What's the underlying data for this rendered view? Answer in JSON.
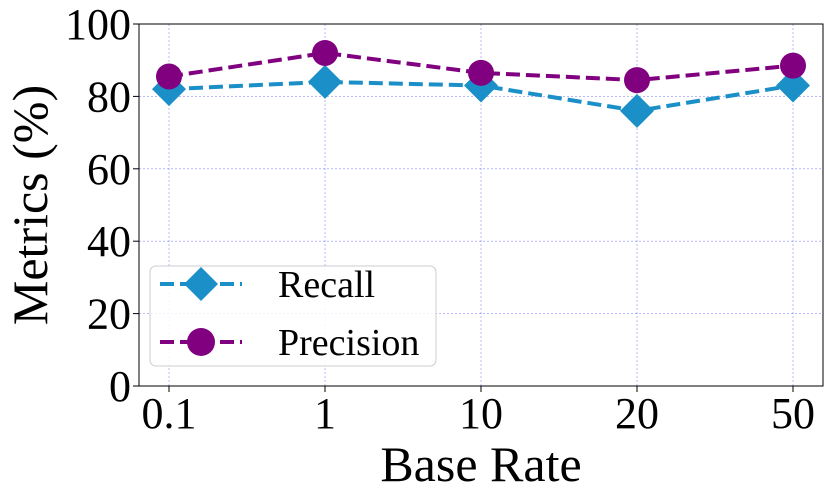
{
  "chart_data": {
    "type": "line",
    "title": "",
    "xlabel": "Base Rate",
    "ylabel": "Metrics (%)",
    "categories": [
      "0.1",
      "1",
      "10",
      "20",
      "50"
    ],
    "ylim": [
      0,
      100
    ],
    "yticks": [
      "0",
      "20",
      "40",
      "60",
      "80",
      "100"
    ],
    "grid": true,
    "legend_position": "lower-left",
    "series": [
      {
        "name": "Recall",
        "values": [
          82,
          84,
          83,
          76,
          83
        ],
        "color": "#1b8fc7",
        "marker": "diamond",
        "linestyle": "dashed"
      },
      {
        "name": "Precision",
        "values": [
          85.5,
          92,
          86.5,
          84.5,
          88.5
        ],
        "color": "#800080",
        "marker": "circle",
        "linestyle": "dashed"
      }
    ]
  }
}
